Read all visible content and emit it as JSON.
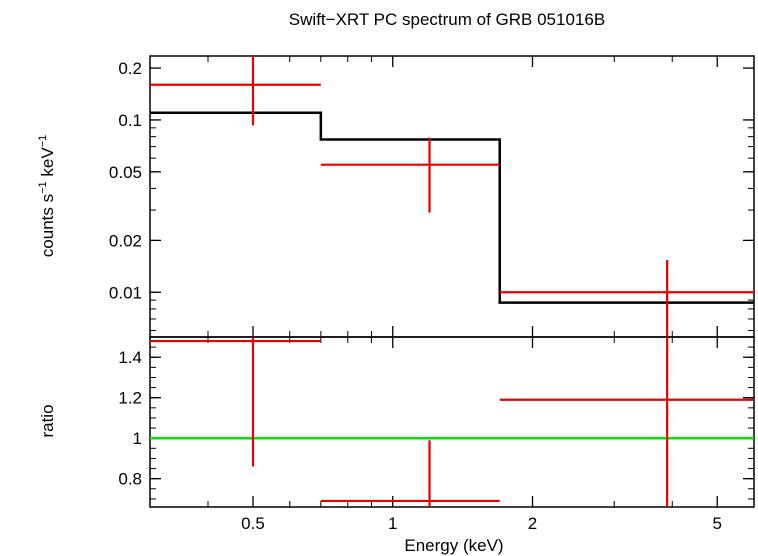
{
  "chart_data": {
    "type": "scatter",
    "title": "Swift−XRT PC spectrum of GRB 051016B",
    "xlabel": "Energy (keV)",
    "xscale": "log",
    "xlim": [
      0.3,
      6.0
    ],
    "xticks": [
      0.5,
      1,
      2,
      5
    ],
    "xtick_labels": [
      "0.5",
      "1",
      "2",
      "5"
    ],
    "panels": [
      {
        "name": "spectrum",
        "ylabel_parts": [
          "counts s",
          "−1",
          " keV",
          "−1"
        ],
        "yscale": "log",
        "ylim": [
          0.0055,
          0.235
        ],
        "yticks": [
          0.2,
          0.1,
          0.05,
          0.02,
          0.01
        ],
        "ytick_labels": [
          "0.2",
          "0.1",
          "0.05",
          "0.02",
          "0.01"
        ],
        "data": [
          {
            "x": 0.5,
            "xlo": 0.3,
            "xhi": 0.7,
            "y": 0.16,
            "ylo": 0.093,
            "yhi": 0.235
          },
          {
            "x": 1.2,
            "xlo": 0.7,
            "xhi": 1.7,
            "y": 0.055,
            "ylo": 0.029,
            "yhi": 0.079
          },
          {
            "x": 3.9,
            "xlo": 1.7,
            "xhi": 6.0,
            "y": 0.01,
            "ylo": 0.0055,
            "yhi": 0.0154
          }
        ],
        "model": [
          {
            "xlo": 0.3,
            "xhi": 0.7,
            "y": 0.11
          },
          {
            "xlo": 0.7,
            "xhi": 1.7,
            "y": 0.077
          },
          {
            "xlo": 1.7,
            "xhi": 6.0,
            "y": 0.0087
          }
        ]
      },
      {
        "name": "ratio",
        "ylabel": "ratio",
        "yscale": "linear",
        "ylim": [
          0.66,
          1.5
        ],
        "yticks": [
          0.8,
          1.0,
          1.2,
          1.4
        ],
        "ytick_labels": [
          "0.8",
          "1",
          "1.2",
          "1.4"
        ],
        "reference_line": 1.0,
        "data": [
          {
            "x": 0.5,
            "xlo": 0.3,
            "xhi": 0.7,
            "y": 1.48,
            "ylo": 0.86,
            "yhi": 1.5
          },
          {
            "x": 1.2,
            "xlo": 0.7,
            "xhi": 1.7,
            "y": 0.69,
            "ylo": 0.66,
            "yhi": 0.99
          },
          {
            "x": 3.9,
            "xlo": 1.7,
            "xhi": 6.0,
            "y": 1.19,
            "ylo": 0.66,
            "yhi": 1.5
          }
        ]
      }
    ],
    "colors": {
      "data": "#e60000",
      "model": "#000000",
      "reference": "#00e600"
    }
  }
}
